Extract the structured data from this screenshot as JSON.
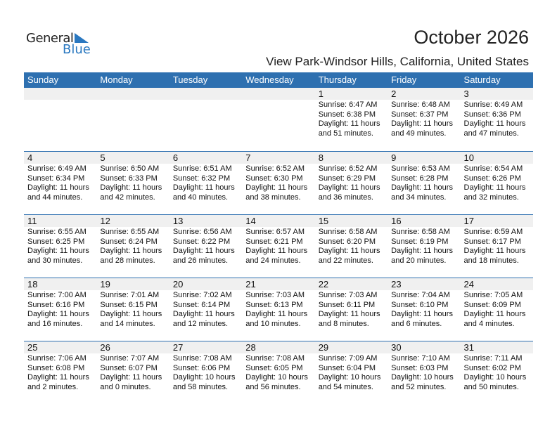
{
  "logo": {
    "line1": "General",
    "line2": "Blue",
    "accent": "#2a78c0"
  },
  "title": "October 2026",
  "subtitle": "View Park-Windsor Hills, California, United States",
  "colors": {
    "header_bg": "#2e70b0",
    "date_band": "#f0f0f0"
  },
  "weekdays": [
    "Sunday",
    "Monday",
    "Tuesday",
    "Wednesday",
    "Thursday",
    "Friday",
    "Saturday"
  ],
  "weeks": [
    [
      null,
      null,
      null,
      null,
      {
        "day": "1",
        "sunrise": "Sunrise: 6:47 AM",
        "sunset": "Sunset: 6:38 PM",
        "daylight": "Daylight: 11 hours",
        "minutes": "and 51 minutes."
      },
      {
        "day": "2",
        "sunrise": "Sunrise: 6:48 AM",
        "sunset": "Sunset: 6:37 PM",
        "daylight": "Daylight: 11 hours",
        "minutes": "and 49 minutes."
      },
      {
        "day": "3",
        "sunrise": "Sunrise: 6:49 AM",
        "sunset": "Sunset: 6:36 PM",
        "daylight": "Daylight: 11 hours",
        "minutes": "and 47 minutes."
      }
    ],
    [
      {
        "day": "4",
        "sunrise": "Sunrise: 6:49 AM",
        "sunset": "Sunset: 6:34 PM",
        "daylight": "Daylight: 11 hours",
        "minutes": "and 44 minutes."
      },
      {
        "day": "5",
        "sunrise": "Sunrise: 6:50 AM",
        "sunset": "Sunset: 6:33 PM",
        "daylight": "Daylight: 11 hours",
        "minutes": "and 42 minutes."
      },
      {
        "day": "6",
        "sunrise": "Sunrise: 6:51 AM",
        "sunset": "Sunset: 6:32 PM",
        "daylight": "Daylight: 11 hours",
        "minutes": "and 40 minutes."
      },
      {
        "day": "7",
        "sunrise": "Sunrise: 6:52 AM",
        "sunset": "Sunset: 6:30 PM",
        "daylight": "Daylight: 11 hours",
        "minutes": "and 38 minutes."
      },
      {
        "day": "8",
        "sunrise": "Sunrise: 6:52 AM",
        "sunset": "Sunset: 6:29 PM",
        "daylight": "Daylight: 11 hours",
        "minutes": "and 36 minutes."
      },
      {
        "day": "9",
        "sunrise": "Sunrise: 6:53 AM",
        "sunset": "Sunset: 6:28 PM",
        "daylight": "Daylight: 11 hours",
        "minutes": "and 34 minutes."
      },
      {
        "day": "10",
        "sunrise": "Sunrise: 6:54 AM",
        "sunset": "Sunset: 6:26 PM",
        "daylight": "Daylight: 11 hours",
        "minutes": "and 32 minutes."
      }
    ],
    [
      {
        "day": "11",
        "sunrise": "Sunrise: 6:55 AM",
        "sunset": "Sunset: 6:25 PM",
        "daylight": "Daylight: 11 hours",
        "minutes": "and 30 minutes."
      },
      {
        "day": "12",
        "sunrise": "Sunrise: 6:55 AM",
        "sunset": "Sunset: 6:24 PM",
        "daylight": "Daylight: 11 hours",
        "minutes": "and 28 minutes."
      },
      {
        "day": "13",
        "sunrise": "Sunrise: 6:56 AM",
        "sunset": "Sunset: 6:22 PM",
        "daylight": "Daylight: 11 hours",
        "minutes": "and 26 minutes."
      },
      {
        "day": "14",
        "sunrise": "Sunrise: 6:57 AM",
        "sunset": "Sunset: 6:21 PM",
        "daylight": "Daylight: 11 hours",
        "minutes": "and 24 minutes."
      },
      {
        "day": "15",
        "sunrise": "Sunrise: 6:58 AM",
        "sunset": "Sunset: 6:20 PM",
        "daylight": "Daylight: 11 hours",
        "minutes": "and 22 minutes."
      },
      {
        "day": "16",
        "sunrise": "Sunrise: 6:58 AM",
        "sunset": "Sunset: 6:19 PM",
        "daylight": "Daylight: 11 hours",
        "minutes": "and 20 minutes."
      },
      {
        "day": "17",
        "sunrise": "Sunrise: 6:59 AM",
        "sunset": "Sunset: 6:17 PM",
        "daylight": "Daylight: 11 hours",
        "minutes": "and 18 minutes."
      }
    ],
    [
      {
        "day": "18",
        "sunrise": "Sunrise: 7:00 AM",
        "sunset": "Sunset: 6:16 PM",
        "daylight": "Daylight: 11 hours",
        "minutes": "and 16 minutes."
      },
      {
        "day": "19",
        "sunrise": "Sunrise: 7:01 AM",
        "sunset": "Sunset: 6:15 PM",
        "daylight": "Daylight: 11 hours",
        "minutes": "and 14 minutes."
      },
      {
        "day": "20",
        "sunrise": "Sunrise: 7:02 AM",
        "sunset": "Sunset: 6:14 PM",
        "daylight": "Daylight: 11 hours",
        "minutes": "and 12 minutes."
      },
      {
        "day": "21",
        "sunrise": "Sunrise: 7:03 AM",
        "sunset": "Sunset: 6:13 PM",
        "daylight": "Daylight: 11 hours",
        "minutes": "and 10 minutes."
      },
      {
        "day": "22",
        "sunrise": "Sunrise: 7:03 AM",
        "sunset": "Sunset: 6:11 PM",
        "daylight": "Daylight: 11 hours",
        "minutes": "and 8 minutes."
      },
      {
        "day": "23",
        "sunrise": "Sunrise: 7:04 AM",
        "sunset": "Sunset: 6:10 PM",
        "daylight": "Daylight: 11 hours",
        "minutes": "and 6 minutes."
      },
      {
        "day": "24",
        "sunrise": "Sunrise: 7:05 AM",
        "sunset": "Sunset: 6:09 PM",
        "daylight": "Daylight: 11 hours",
        "minutes": "and 4 minutes."
      }
    ],
    [
      {
        "day": "25",
        "sunrise": "Sunrise: 7:06 AM",
        "sunset": "Sunset: 6:08 PM",
        "daylight": "Daylight: 11 hours",
        "minutes": "and 2 minutes."
      },
      {
        "day": "26",
        "sunrise": "Sunrise: 7:07 AM",
        "sunset": "Sunset: 6:07 PM",
        "daylight": "Daylight: 11 hours",
        "minutes": "and 0 minutes."
      },
      {
        "day": "27",
        "sunrise": "Sunrise: 7:08 AM",
        "sunset": "Sunset: 6:06 PM",
        "daylight": "Daylight: 10 hours",
        "minutes": "and 58 minutes."
      },
      {
        "day": "28",
        "sunrise": "Sunrise: 7:08 AM",
        "sunset": "Sunset: 6:05 PM",
        "daylight": "Daylight: 10 hours",
        "minutes": "and 56 minutes."
      },
      {
        "day": "29",
        "sunrise": "Sunrise: 7:09 AM",
        "sunset": "Sunset: 6:04 PM",
        "daylight": "Daylight: 10 hours",
        "minutes": "and 54 minutes."
      },
      {
        "day": "30",
        "sunrise": "Sunrise: 7:10 AM",
        "sunset": "Sunset: 6:03 PM",
        "daylight": "Daylight: 10 hours",
        "minutes": "and 52 minutes."
      },
      {
        "day": "31",
        "sunrise": "Sunrise: 7:11 AM",
        "sunset": "Sunset: 6:02 PM",
        "daylight": "Daylight: 10 hours",
        "minutes": "and 50 minutes."
      }
    ]
  ]
}
